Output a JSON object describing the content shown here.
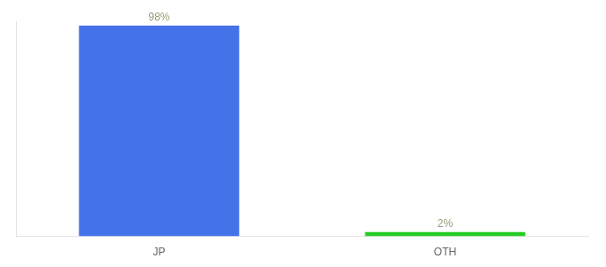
{
  "chart_data": {
    "type": "bar",
    "categories": [
      "JP",
      "OTH"
    ],
    "values": [
      98,
      2
    ],
    "value_labels": [
      "98%",
      "2%"
    ],
    "colors": [
      "#4472e8",
      "#22cc22"
    ],
    "ylim": [
      0,
      100
    ],
    "grid": false,
    "data_labels": true,
    "tick_labels": "x"
  }
}
